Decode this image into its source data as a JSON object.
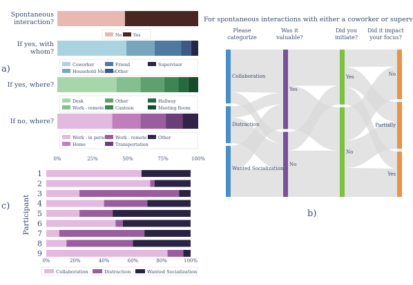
{
  "panel_labels": {
    "a": "a)",
    "b": "b)",
    "c": "c)"
  },
  "sankey_title": "For spontaneous interactions with either a coworker or supervisor:",
  "colors": {
    "text": "#3a4a6b",
    "link": "#d9d9d9"
  },
  "chart_data": [
    {
      "type": "bar",
      "orientation": "horizontal-stacked-100",
      "panel": "a",
      "xticks": [
        "0%",
        "25%",
        "50%",
        "75%",
        "100%"
      ],
      "xlim": [
        0,
        100
      ],
      "rows": [
        {
          "label": "Spontaneous interaction?",
          "segments": [
            {
              "name": "No",
              "value": 48,
              "color": "#e8b9b1"
            },
            {
              "name": "Yes",
              "value": 52,
              "color": "#4a2622"
            }
          ],
          "legend": [
            "No",
            "Yes"
          ]
        },
        {
          "label": "If yes, with whom?",
          "segments": [
            {
              "name": "Coworker",
              "value": 49,
              "color": "#a9d3e0"
            },
            {
              "name": "Household Member",
              "value": 20,
              "color": "#77a6bf"
            },
            {
              "name": "Friend",
              "value": 19,
              "color": "#4e7aa0"
            },
            {
              "name": "Other",
              "value": 7,
              "color": "#3c5a87"
            },
            {
              "name": "Supervisor",
              "value": 5,
              "color": "#232746"
            }
          ],
          "legend": [
            "Coworker",
            "Friend",
            "Supervisor",
            "Household Member",
            "Other"
          ]
        },
        {
          "label": "If yes, where?",
          "segments": [
            {
              "name": "Desk",
              "value": 42,
              "color": "#a6d6a9"
            },
            {
              "name": "Work - remote",
              "value": 17,
              "color": "#84c08d"
            },
            {
              "name": "Other",
              "value": 17,
              "color": "#5ea06e"
            },
            {
              "name": "Canteen",
              "value": 10,
              "color": "#3f8553"
            },
            {
              "name": "Hallway",
              "value": 7,
              "color": "#256a3c"
            },
            {
              "name": "Meeting Room",
              "value": 7,
              "color": "#174c2a"
            }
          ],
          "legend": [
            "Desk",
            "Other",
            "Hallway",
            "Work - remote",
            "Canteen",
            "Meeting Room"
          ]
        },
        {
          "label": "If no, where?",
          "segments": [
            {
              "name": "Work - in person",
              "value": 39,
              "color": "#e3b9df"
            },
            {
              "name": "Home",
              "value": 20,
              "color": "#c07fbc"
            },
            {
              "name": "Work - remote",
              "value": 18,
              "color": "#9a5e9e"
            },
            {
              "name": "Transportation",
              "value": 12,
              "color": "#6a3f78"
            },
            {
              "name": "Other",
              "value": 11,
              "color": "#322348"
            }
          ],
          "legend": [
            "Work - in person",
            "Work - remote",
            "Other",
            "Home",
            "Transportation"
          ]
        }
      ]
    },
    {
      "type": "sankey",
      "panel": "b",
      "columns": [
        {
          "header": "Please categorize",
          "color": "#4a8ec7",
          "nodes": [
            {
              "label": "Collaboration",
              "value": 38
            },
            {
              "label": "Distraction",
              "value": 26
            },
            {
              "label": "Wanted Socialization",
              "value": 36
            }
          ]
        },
        {
          "header": "Was it valuable?",
          "color": "#7b4f9a",
          "nodes": [
            {
              "label": "Yes",
              "value": 55
            },
            {
              "label": "No",
              "value": 45
            }
          ]
        },
        {
          "header": "Did you initiate?",
          "color": "#7cc242",
          "nodes": [
            {
              "label": "Yes",
              "value": 38
            },
            {
              "label": "No",
              "value": 62
            }
          ]
        },
        {
          "header": "Did it impact your focus?",
          "color": "#e8924a",
          "nodes": [
            {
              "label": "No",
              "value": 35
            },
            {
              "label": "Partially",
              "value": 33
            },
            {
              "label": "Yes",
              "value": 32
            }
          ]
        }
      ],
      "links": [
        {
          "from": [
            0,
            0
          ],
          "to": [
            1,
            0
          ],
          "value": 30
        },
        {
          "from": [
            0,
            0
          ],
          "to": [
            1,
            1
          ],
          "value": 8
        },
        {
          "from": [
            0,
            1
          ],
          "to": [
            1,
            0
          ],
          "value": 8
        },
        {
          "from": [
            0,
            1
          ],
          "to": [
            1,
            1
          ],
          "value": 18
        },
        {
          "from": [
            0,
            2
          ],
          "to": [
            1,
            0
          ],
          "value": 17
        },
        {
          "from": [
            0,
            2
          ],
          "to": [
            1,
            1
          ],
          "value": 19
        },
        {
          "from": [
            1,
            0
          ],
          "to": [
            2,
            0
          ],
          "value": 25
        },
        {
          "from": [
            1,
            0
          ],
          "to": [
            2,
            1
          ],
          "value": 30
        },
        {
          "from": [
            1,
            1
          ],
          "to": [
            2,
            0
          ],
          "value": 13
        },
        {
          "from": [
            1,
            1
          ],
          "to": [
            2,
            1
          ],
          "value": 32
        },
        {
          "from": [
            2,
            0
          ],
          "to": [
            3,
            0
          ],
          "value": 12
        },
        {
          "from": [
            2,
            0
          ],
          "to": [
            3,
            1
          ],
          "value": 14
        },
        {
          "from": [
            2,
            0
          ],
          "to": [
            3,
            2
          ],
          "value": 12
        },
        {
          "from": [
            2,
            1
          ],
          "to": [
            3,
            0
          ],
          "value": 23
        },
        {
          "from": [
            2,
            1
          ],
          "to": [
            3,
            1
          ],
          "value": 19
        },
        {
          "from": [
            2,
            1
          ],
          "to": [
            3,
            2
          ],
          "value": 20
        }
      ]
    },
    {
      "type": "bar",
      "orientation": "horizontal-stacked-100",
      "panel": "c",
      "ylabel": "Participant",
      "xticks": [
        "0%",
        "20%",
        "40%",
        "60%",
        "80%",
        "100%"
      ],
      "xlim": [
        0,
        100
      ],
      "series": [
        {
          "name": "Collaboration",
          "color": "#e3b9df"
        },
        {
          "name": "Distraction",
          "color": "#9a5e9e"
        },
        {
          "name": "Wanted Socialization",
          "color": "#2a2342"
        }
      ],
      "categories": [
        "1",
        "2",
        "3",
        "4",
        "5",
        "6",
        "7",
        "8",
        "9"
      ],
      "values": [
        [
          66,
          0,
          34
        ],
        [
          72,
          3,
          25
        ],
        [
          23,
          69,
          8
        ],
        [
          40,
          30,
          30
        ],
        [
          23,
          23,
          54
        ],
        [
          48,
          5,
          47
        ],
        [
          9,
          59,
          32
        ],
        [
          14,
          46,
          40
        ],
        [
          84,
          11,
          5
        ]
      ]
    }
  ]
}
